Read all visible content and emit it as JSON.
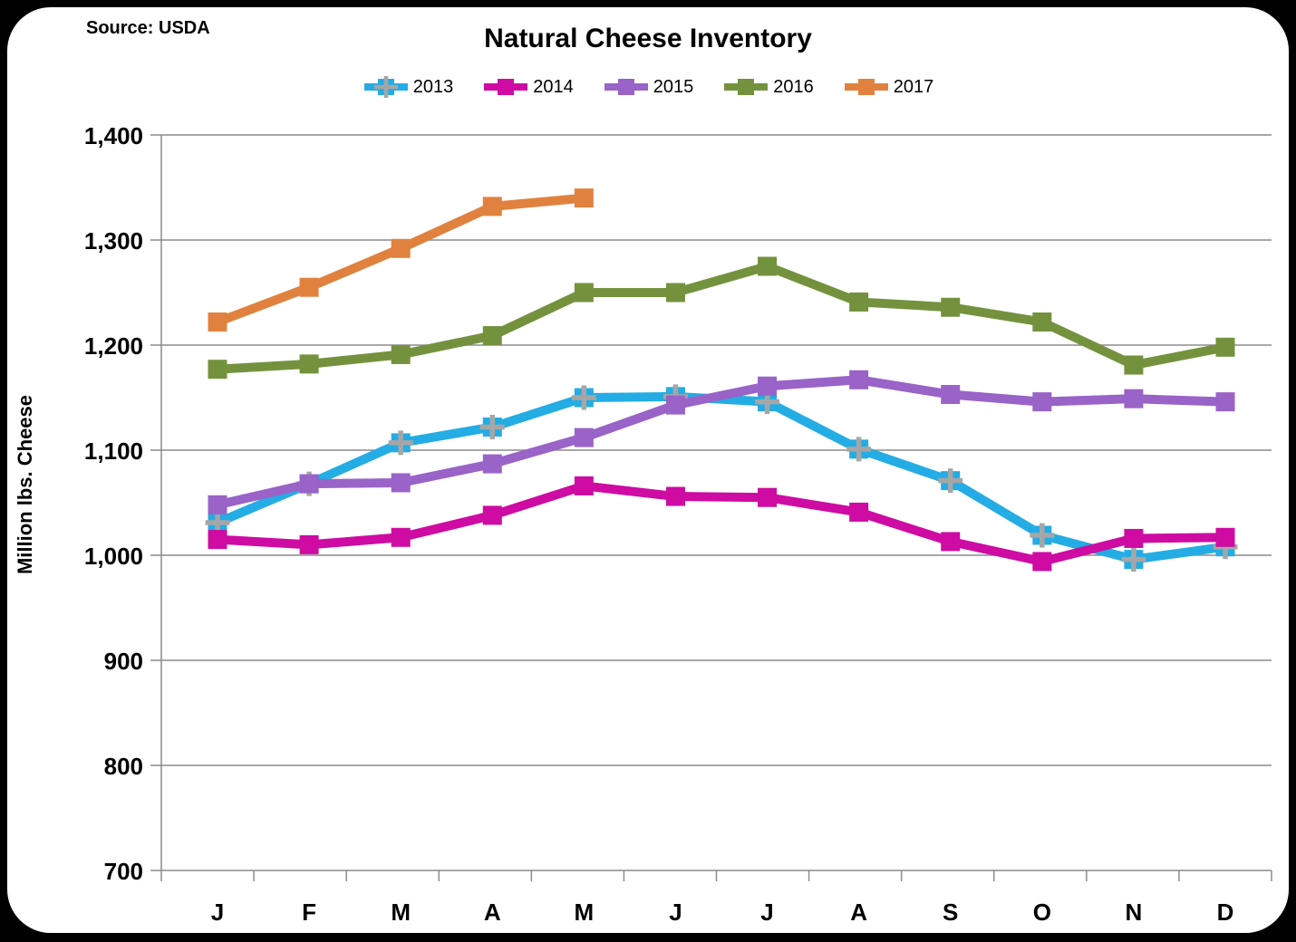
{
  "chart_data": {
    "type": "line",
    "title": "Natural Cheese Inventory",
    "source": "Source: USDA",
    "ylabel": "Million lbs. Cheese",
    "xlabel": "",
    "categories": [
      "J",
      "F",
      "M",
      "A",
      "M",
      "J",
      "J",
      "A",
      "S",
      "O",
      "N",
      "D"
    ],
    "ylim": [
      700,
      1400
    ],
    "ytick_step": 100,
    "ytick_labels": [
      "700",
      "800",
      "900",
      "1,000",
      "1,100",
      "1,200",
      "1,300",
      "1,400"
    ],
    "grid": true,
    "legend_position": "top",
    "colors": {
      "grid": "#8C8C8C",
      "plus_marker": "#A6A6A6",
      "background": "#FFFFFF",
      "frame": "#000000"
    },
    "series": [
      {
        "name": "2013",
        "color": "#24ACE4",
        "marker": "plus",
        "values": [
          1031,
          1068,
          1107,
          1122,
          1150,
          1151,
          1146,
          1101,
          1071,
          1019,
          996,
          1008
        ]
      },
      {
        "name": "2014",
        "color": "#CE0BA2",
        "marker": "square",
        "values": [
          1015,
          1010,
          1017,
          1038,
          1066,
          1056,
          1055,
          1041,
          1013,
          994,
          1016,
          1017
        ]
      },
      {
        "name": "2015",
        "color": "#9963C8",
        "marker": "square",
        "values": [
          1048,
          1068,
          1069,
          1087,
          1112,
          1143,
          1161,
          1167,
          1153,
          1146,
          1149,
          1146
        ]
      },
      {
        "name": "2016",
        "color": "#74923E",
        "marker": "square",
        "values": [
          1177,
          1182,
          1191,
          1209,
          1250,
          1250,
          1275,
          1241,
          1236,
          1222,
          1181,
          1198
        ]
      },
      {
        "name": "2017",
        "color": "#E0823E",
        "marker": "square",
        "values": [
          1222,
          1255,
          1292,
          1332,
          1340
        ]
      }
    ]
  }
}
